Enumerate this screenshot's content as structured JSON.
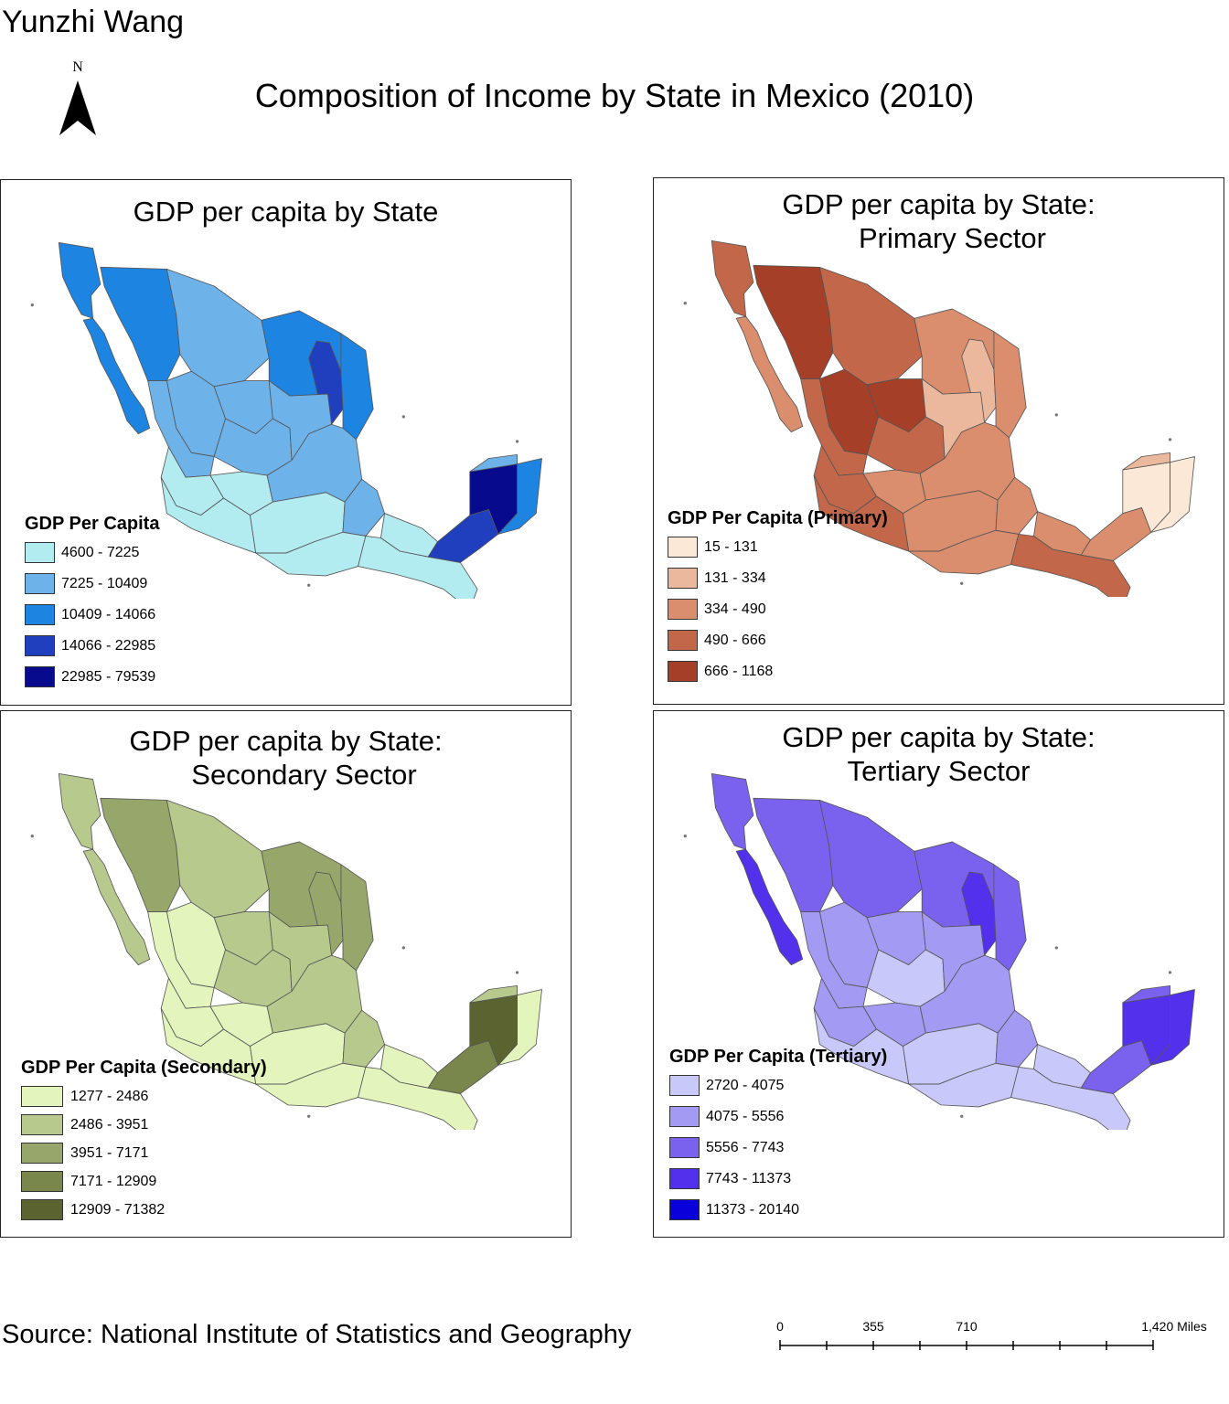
{
  "author": "Yunzhi Wang",
  "north_arrow": {
    "letter": "N",
    "icon": "north-arrow-icon"
  },
  "title": "Composition of Income by State in Mexico (2010)",
  "panels": [
    {
      "id": "total",
      "title_line1": "GDP per capita by State",
      "title_line2": "",
      "legend_title": "GDP Per Capita",
      "classes": [
        {
          "label": "4600 - 7225",
          "color": "#b3ecf0"
        },
        {
          "label": "7225 - 10409",
          "color": "#6eb2ea"
        },
        {
          "label": "10409 - 14066",
          "color": "#1d84e2"
        },
        {
          "label": "14066 - 22985",
          "color": "#1f3fbf"
        },
        {
          "label": "22985 - 79539",
          "color": "#070a8c"
        }
      ]
    },
    {
      "id": "primary",
      "title_line1": "GDP per capita by State:",
      "title_line2": "Primary Sector",
      "legend_title": "GDP Per Capita (Primary)",
      "classes": [
        {
          "label": "15 - 131",
          "color": "#fbe8d6"
        },
        {
          "label": "131 - 334",
          "color": "#ebb89d"
        },
        {
          "label": "334 - 490",
          "color": "#db8e6d"
        },
        {
          "label": "490 - 666",
          "color": "#c3674a"
        },
        {
          "label": "666 - 1168",
          "color": "#a53f28"
        }
      ]
    },
    {
      "id": "secondary",
      "title_line1": "GDP per capita by State:",
      "title_line2": "Secondary Sector",
      "legend_title": "GDP Per Capita (Secondary)",
      "classes": [
        {
          "label": "1277 - 2486",
          "color": "#e3f4bd"
        },
        {
          "label": "2486 - 3951",
          "color": "#b8c98d"
        },
        {
          "label": "3951 - 7171",
          "color": "#97a66a"
        },
        {
          "label": "7171 - 12909",
          "color": "#79874c"
        },
        {
          "label": "12909 - 71382",
          "color": "#5b6430"
        }
      ]
    },
    {
      "id": "tertiary",
      "title_line1": "GDP per capita by State:",
      "title_line2": "Tertiary Sector",
      "legend_title": "GDP Per Capita (Tertiary)",
      "classes": [
        {
          "label": "2720 - 4075",
          "color": "#c9c8fa"
        },
        {
          "label": "4075 - 5556",
          "color": "#a39af4"
        },
        {
          "label": "5556 - 7743",
          "color": "#7a62ef"
        },
        {
          "label": "7743 - 11373",
          "color": "#5331ec"
        },
        {
          "label": "11373 - 20140",
          "color": "#0a00d9"
        }
      ]
    }
  ],
  "source": "Source: National Institute of Statistics and Geography",
  "scale_bar": {
    "ticks": [
      "0",
      "355",
      "710",
      "1,420 Miles"
    ]
  }
}
